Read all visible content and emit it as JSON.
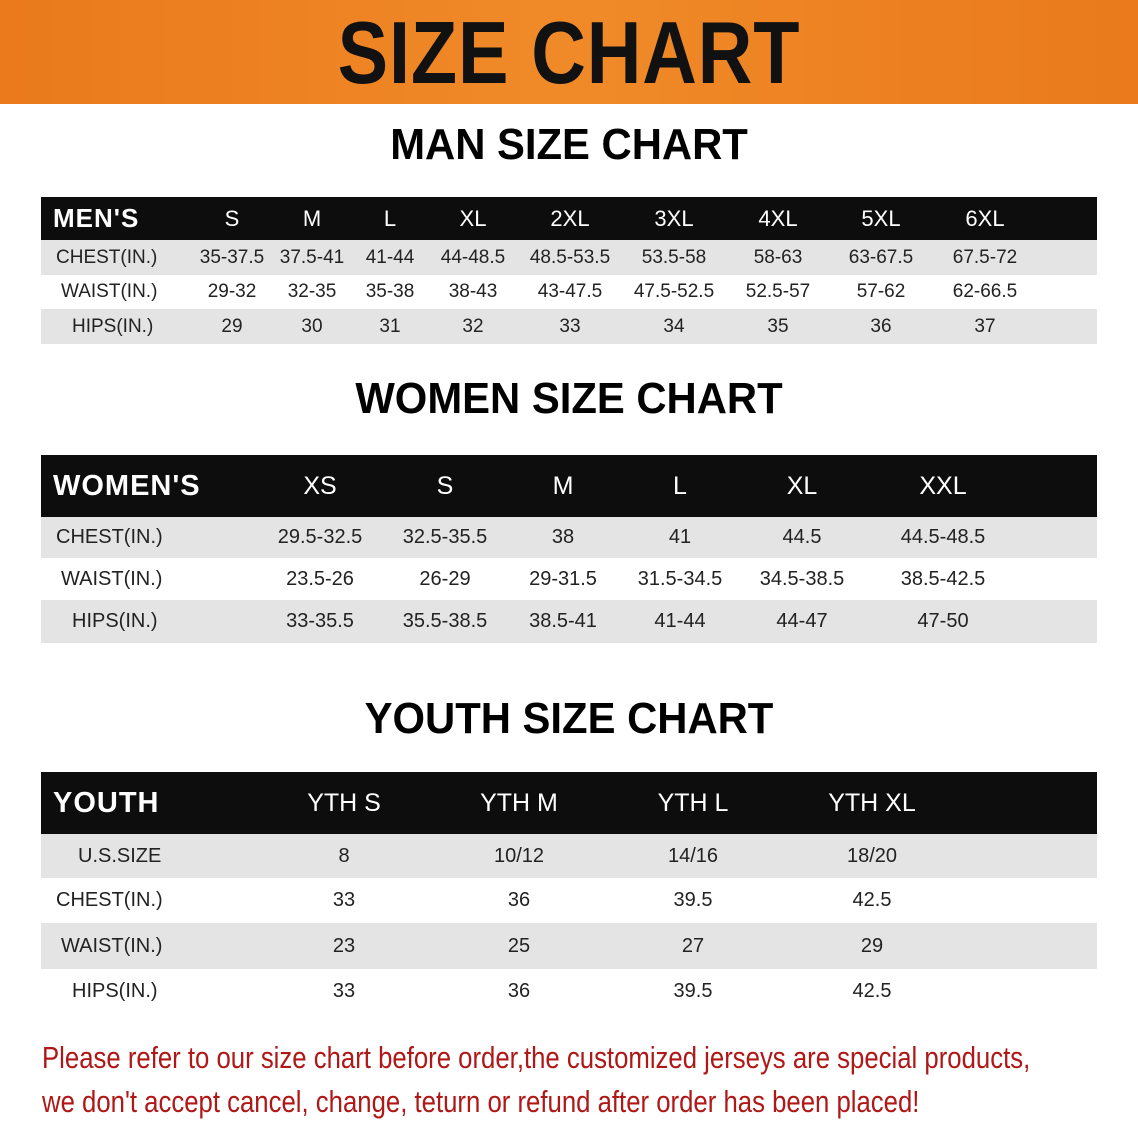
{
  "banner": {
    "title": "SIZE CHART",
    "color": "#ea7a1c"
  },
  "men": {
    "title": "MAN SIZE CHART",
    "header": [
      "MEN'S",
      "S",
      "M",
      "L",
      "XL",
      "2XL",
      "3XL",
      "4XL",
      "5XL",
      "6XL"
    ],
    "rows": [
      [
        "CHEST(IN.)",
        "35-37.5",
        "37.5-41",
        "41-44",
        "44-48.5",
        "48.5-53.5",
        "53.5-58",
        "58-63",
        "63-67.5",
        "67.5-72"
      ],
      [
        "WAIST(IN.)",
        "29-32",
        "32-35",
        "35-38",
        "38-43",
        "43-47.5",
        "47.5-52.5",
        "52.5-57",
        "57-62",
        "62-66.5"
      ],
      [
        "HIPS(IN.)",
        "29",
        "30",
        "31",
        "32",
        "33",
        "34",
        "35",
        "36",
        "37"
      ]
    ]
  },
  "women": {
    "title": "WOMEN SIZE CHART",
    "header": [
      "WOMEN'S",
      "XS",
      "S",
      "M",
      "L",
      "XL",
      "XXL"
    ],
    "rows": [
      [
        "CHEST(IN.)",
        "29.5-32.5",
        "32.5-35.5",
        "38",
        "41",
        "44.5",
        "44.5-48.5"
      ],
      [
        "WAIST(IN.)",
        "23.5-26",
        "26-29",
        "29-31.5",
        "31.5-34.5",
        "34.5-38.5",
        "38.5-42.5"
      ],
      [
        "HIPS(IN.)",
        "33-35.5",
        "35.5-38.5",
        "38.5-41",
        "41-44",
        "44-47",
        "47-50"
      ]
    ]
  },
  "youth": {
    "title": "YOUTH SIZE CHART",
    "header": [
      "YOUTH",
      "YTH S",
      "YTH M",
      "YTH L",
      "YTH XL"
    ],
    "rows": [
      [
        "U.S.SIZE",
        "8",
        "10/12",
        "14/16",
        "18/20"
      ],
      [
        "CHEST(IN.)",
        "33",
        "36",
        "39.5",
        "42.5"
      ],
      [
        "WAIST(IN.)",
        "23",
        "25",
        "27",
        "29"
      ],
      [
        "HIPS(IN.)",
        "33",
        "36",
        "39.5",
        "42.5"
      ]
    ]
  },
  "note": {
    "line1": "Please refer to our size chart before order,the customized jerseys are special products,",
    "line2": "we don't accept cancel, change, teturn or refund after order has been placed!",
    "color": "#b01818"
  }
}
